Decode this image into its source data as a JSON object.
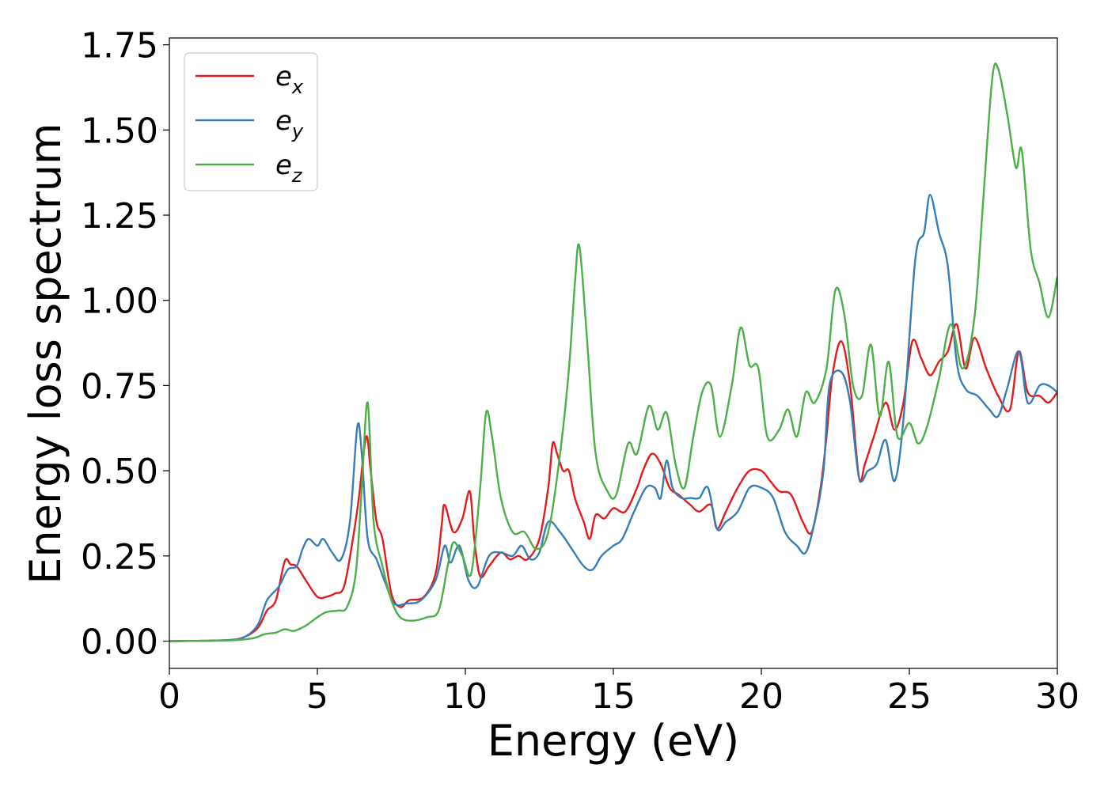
{
  "chart_data": {
    "type": "line",
    "title": "",
    "xlabel": "Energy (eV)",
    "ylabel": "Energy loss spectrum",
    "xlim": [
      0,
      30
    ],
    "ylim": [
      -0.08,
      1.77
    ],
    "xticks": [
      0,
      5,
      10,
      15,
      20,
      25,
      30
    ],
    "xtick_labels": [
      "0",
      "5",
      "10",
      "15",
      "20",
      "25",
      "30"
    ],
    "yticks": [
      0.0,
      0.25,
      0.5,
      0.75,
      1.0,
      1.25,
      1.5,
      1.75
    ],
    "ytick_labels": [
      "0.00",
      "0.25",
      "0.50",
      "0.75",
      "1.00",
      "1.25",
      "1.50",
      "1.75"
    ],
    "grid": false,
    "legend_position": "top-left",
    "series": [
      {
        "name": "e_x",
        "label_base": "e",
        "label_sub": "x",
        "color": "#e41a1c",
        "points": [
          [
            0,
            0
          ],
          [
            2.0,
            0.003
          ],
          [
            2.6,
            0.015
          ],
          [
            3.0,
            0.04
          ],
          [
            3.3,
            0.09
          ],
          [
            3.6,
            0.12
          ],
          [
            3.9,
            0.235
          ],
          [
            4.1,
            0.225
          ],
          [
            4.3,
            0.22
          ],
          [
            4.6,
            0.18
          ],
          [
            5.0,
            0.13
          ],
          [
            5.3,
            0.13
          ],
          [
            5.6,
            0.14
          ],
          [
            5.9,
            0.16
          ],
          [
            6.2,
            0.3
          ],
          [
            6.4,
            0.42
          ],
          [
            6.65,
            0.6
          ],
          [
            6.8,
            0.5
          ],
          [
            7.0,
            0.35
          ],
          [
            7.2,
            0.3
          ],
          [
            7.5,
            0.14
          ],
          [
            7.8,
            0.1
          ],
          [
            8.1,
            0.12
          ],
          [
            8.6,
            0.13
          ],
          [
            9.0,
            0.2
          ],
          [
            9.2,
            0.34
          ],
          [
            9.3,
            0.4
          ],
          [
            9.6,
            0.32
          ],
          [
            9.9,
            0.36
          ],
          [
            10.15,
            0.44
          ],
          [
            10.3,
            0.3
          ],
          [
            10.5,
            0.19
          ],
          [
            10.8,
            0.22
          ],
          [
            11.2,
            0.26
          ],
          [
            11.5,
            0.24
          ],
          [
            11.8,
            0.25
          ],
          [
            12.1,
            0.24
          ],
          [
            12.5,
            0.3
          ],
          [
            12.8,
            0.45
          ],
          [
            12.95,
            0.58
          ],
          [
            13.1,
            0.55
          ],
          [
            13.3,
            0.5
          ],
          [
            13.5,
            0.5
          ],
          [
            13.7,
            0.42
          ],
          [
            14.0,
            0.35
          ],
          [
            14.2,
            0.3
          ],
          [
            14.4,
            0.37
          ],
          [
            14.7,
            0.36
          ],
          [
            15.0,
            0.39
          ],
          [
            15.4,
            0.38
          ],
          [
            15.8,
            0.45
          ],
          [
            16.0,
            0.5
          ],
          [
            16.3,
            0.55
          ],
          [
            16.6,
            0.52
          ],
          [
            16.9,
            0.45
          ],
          [
            17.2,
            0.43
          ],
          [
            17.6,
            0.4
          ],
          [
            17.9,
            0.38
          ],
          [
            18.3,
            0.4
          ],
          [
            18.5,
            0.33
          ],
          [
            18.8,
            0.38
          ],
          [
            19.2,
            0.45
          ],
          [
            19.6,
            0.5
          ],
          [
            20.0,
            0.5
          ],
          [
            20.3,
            0.47
          ],
          [
            20.6,
            0.44
          ],
          [
            21.0,
            0.43
          ],
          [
            21.4,
            0.35
          ],
          [
            21.7,
            0.32
          ],
          [
            22.0,
            0.45
          ],
          [
            22.2,
            0.6
          ],
          [
            22.4,
            0.78
          ],
          [
            22.7,
            0.88
          ],
          [
            23.0,
            0.75
          ],
          [
            23.3,
            0.48
          ],
          [
            23.5,
            0.52
          ],
          [
            23.8,
            0.6
          ],
          [
            24.2,
            0.7
          ],
          [
            24.5,
            0.62
          ],
          [
            24.8,
            0.7
          ],
          [
            25.1,
            0.88
          ],
          [
            25.4,
            0.83
          ],
          [
            25.7,
            0.78
          ],
          [
            26.0,
            0.82
          ],
          [
            26.3,
            0.85
          ],
          [
            26.6,
            0.93
          ],
          [
            26.9,
            0.8
          ],
          [
            27.2,
            0.89
          ],
          [
            27.6,
            0.8
          ],
          [
            28.0,
            0.72
          ],
          [
            28.4,
            0.68
          ],
          [
            28.7,
            0.85
          ],
          [
            29.0,
            0.73
          ],
          [
            29.4,
            0.72
          ],
          [
            29.7,
            0.7
          ],
          [
            30.0,
            0.73
          ]
        ]
      },
      {
        "name": "e_y",
        "label_base": "e",
        "label_sub": "y",
        "color": "#377eb8",
        "points": [
          [
            0,
            0
          ],
          [
            2.0,
            0.003
          ],
          [
            2.6,
            0.015
          ],
          [
            3.0,
            0.05
          ],
          [
            3.3,
            0.12
          ],
          [
            3.7,
            0.16
          ],
          [
            4.0,
            0.21
          ],
          [
            4.3,
            0.22
          ],
          [
            4.5,
            0.27
          ],
          [
            4.7,
            0.3
          ],
          [
            5.0,
            0.28
          ],
          [
            5.2,
            0.3
          ],
          [
            5.5,
            0.26
          ],
          [
            5.8,
            0.24
          ],
          [
            6.1,
            0.35
          ],
          [
            6.35,
            0.63
          ],
          [
            6.5,
            0.55
          ],
          [
            6.7,
            0.3
          ],
          [
            7.0,
            0.24
          ],
          [
            7.3,
            0.17
          ],
          [
            7.6,
            0.11
          ],
          [
            8.0,
            0.11
          ],
          [
            8.5,
            0.12
          ],
          [
            9.0,
            0.18
          ],
          [
            9.3,
            0.28
          ],
          [
            9.5,
            0.23
          ],
          [
            9.8,
            0.28
          ],
          [
            10.1,
            0.18
          ],
          [
            10.4,
            0.16
          ],
          [
            10.8,
            0.25
          ],
          [
            11.2,
            0.26
          ],
          [
            11.6,
            0.25
          ],
          [
            11.9,
            0.28
          ],
          [
            12.2,
            0.24
          ],
          [
            12.5,
            0.26
          ],
          [
            12.8,
            0.35
          ],
          [
            13.2,
            0.32
          ],
          [
            13.6,
            0.27
          ],
          [
            14.0,
            0.22
          ],
          [
            14.3,
            0.21
          ],
          [
            14.6,
            0.25
          ],
          [
            15.0,
            0.28
          ],
          [
            15.3,
            0.3
          ],
          [
            15.7,
            0.38
          ],
          [
            16.1,
            0.45
          ],
          [
            16.4,
            0.45
          ],
          [
            16.6,
            0.42
          ],
          [
            16.8,
            0.53
          ],
          [
            17.0,
            0.45
          ],
          [
            17.3,
            0.42
          ],
          [
            17.6,
            0.42
          ],
          [
            17.9,
            0.42
          ],
          [
            18.2,
            0.45
          ],
          [
            18.5,
            0.33
          ],
          [
            18.8,
            0.35
          ],
          [
            19.2,
            0.38
          ],
          [
            19.6,
            0.45
          ],
          [
            20.0,
            0.45
          ],
          [
            20.4,
            0.42
          ],
          [
            20.8,
            0.32
          ],
          [
            21.2,
            0.28
          ],
          [
            21.5,
            0.26
          ],
          [
            21.8,
            0.35
          ],
          [
            22.1,
            0.5
          ],
          [
            22.3,
            0.75
          ],
          [
            22.7,
            0.79
          ],
          [
            23.0,
            0.7
          ],
          [
            23.3,
            0.48
          ],
          [
            23.6,
            0.5
          ],
          [
            23.9,
            0.52
          ],
          [
            24.2,
            0.59
          ],
          [
            24.5,
            0.47
          ],
          [
            24.8,
            0.65
          ],
          [
            25.2,
            1.12
          ],
          [
            25.5,
            1.2
          ],
          [
            25.7,
            1.31
          ],
          [
            26.0,
            1.2
          ],
          [
            26.3,
            1.1
          ],
          [
            26.6,
            0.82
          ],
          [
            26.9,
            0.74
          ],
          [
            27.3,
            0.72
          ],
          [
            27.7,
            0.68
          ],
          [
            28.0,
            0.66
          ],
          [
            28.3,
            0.74
          ],
          [
            28.7,
            0.85
          ],
          [
            29.0,
            0.7
          ],
          [
            29.4,
            0.75
          ],
          [
            29.7,
            0.75
          ],
          [
            30.0,
            0.73
          ]
        ]
      },
      {
        "name": "e_z",
        "label_base": "e",
        "label_sub": "z",
        "color": "#4daf4a",
        "points": [
          [
            0,
            0
          ],
          [
            2.0,
            0.002
          ],
          [
            2.8,
            0.008
          ],
          [
            3.2,
            0.02
          ],
          [
            3.6,
            0.025
          ],
          [
            3.9,
            0.035
          ],
          [
            4.2,
            0.03
          ],
          [
            4.6,
            0.045
          ],
          [
            5.0,
            0.07
          ],
          [
            5.3,
            0.085
          ],
          [
            5.7,
            0.09
          ],
          [
            6.0,
            0.1
          ],
          [
            6.3,
            0.2
          ],
          [
            6.5,
            0.45
          ],
          [
            6.7,
            0.7
          ],
          [
            6.9,
            0.35
          ],
          [
            7.2,
            0.22
          ],
          [
            7.5,
            0.12
          ],
          [
            7.8,
            0.07
          ],
          [
            8.2,
            0.06
          ],
          [
            8.7,
            0.07
          ],
          [
            9.1,
            0.09
          ],
          [
            9.4,
            0.22
          ],
          [
            9.6,
            0.29
          ],
          [
            9.9,
            0.25
          ],
          [
            10.2,
            0.2
          ],
          [
            10.5,
            0.45
          ],
          [
            10.7,
            0.67
          ],
          [
            10.9,
            0.6
          ],
          [
            11.2,
            0.42
          ],
          [
            11.6,
            0.32
          ],
          [
            12.0,
            0.32
          ],
          [
            12.4,
            0.27
          ],
          [
            12.8,
            0.32
          ],
          [
            13.2,
            0.55
          ],
          [
            13.5,
            0.8
          ],
          [
            13.7,
            1.05
          ],
          [
            13.85,
            1.16
          ],
          [
            14.1,
            0.9
          ],
          [
            14.4,
            0.55
          ],
          [
            14.8,
            0.44
          ],
          [
            15.1,
            0.43
          ],
          [
            15.5,
            0.58
          ],
          [
            15.8,
            0.55
          ],
          [
            16.2,
            0.69
          ],
          [
            16.5,
            0.62
          ],
          [
            16.8,
            0.67
          ],
          [
            17.1,
            0.52
          ],
          [
            17.4,
            0.45
          ],
          [
            17.7,
            0.6
          ],
          [
            18.0,
            0.73
          ],
          [
            18.3,
            0.75
          ],
          [
            18.6,
            0.6
          ],
          [
            19.0,
            0.75
          ],
          [
            19.3,
            0.92
          ],
          [
            19.6,
            0.81
          ],
          [
            19.9,
            0.8
          ],
          [
            20.2,
            0.6
          ],
          [
            20.6,
            0.62
          ],
          [
            20.9,
            0.68
          ],
          [
            21.2,
            0.6
          ],
          [
            21.5,
            0.73
          ],
          [
            21.8,
            0.7
          ],
          [
            22.2,
            0.8
          ],
          [
            22.5,
            1.03
          ],
          [
            22.8,
            0.96
          ],
          [
            23.1,
            0.75
          ],
          [
            23.4,
            0.72
          ],
          [
            23.7,
            0.87
          ],
          [
            24.0,
            0.66
          ],
          [
            24.3,
            0.82
          ],
          [
            24.6,
            0.6
          ],
          [
            25.0,
            0.64
          ],
          [
            25.3,
            0.58
          ],
          [
            25.6,
            0.63
          ],
          [
            26.0,
            0.77
          ],
          [
            26.4,
            0.93
          ],
          [
            26.8,
            0.8
          ],
          [
            27.2,
            0.95
          ],
          [
            27.5,
            1.3
          ],
          [
            27.8,
            1.65
          ],
          [
            28.0,
            1.68
          ],
          [
            28.3,
            1.55
          ],
          [
            28.6,
            1.39
          ],
          [
            28.8,
            1.44
          ],
          [
            29.1,
            1.15
          ],
          [
            29.4,
            1.05
          ],
          [
            29.7,
            0.95
          ],
          [
            30.0,
            1.07
          ]
        ]
      }
    ]
  }
}
